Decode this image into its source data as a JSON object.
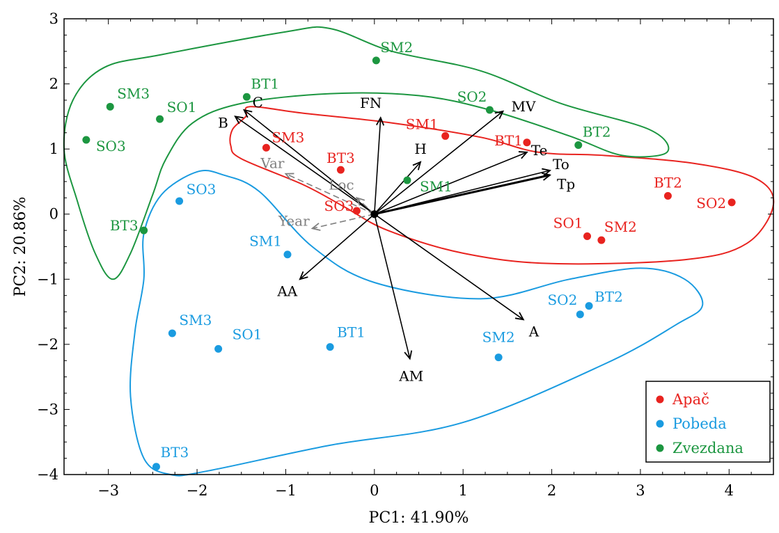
{
  "chart_data": {
    "type": "scatter",
    "title": "",
    "xlabel": "PC1: 41.90%",
    "ylabel": "PC2: 20.86%",
    "xlim": [
      -3.5,
      4.5
    ],
    "ylim": [
      -4,
      3
    ],
    "xticks": [
      -3,
      -2,
      -1,
      0,
      1,
      2,
      3,
      4
    ],
    "yticks": [
      -4,
      -3,
      -2,
      -1,
      0,
      1,
      2,
      3
    ],
    "xtick_labels": [
      "−3",
      "−2",
      "−1",
      "0",
      "1",
      "2",
      "3",
      "4"
    ],
    "ytick_labels": [
      "−4",
      "−3",
      "−2",
      "−1",
      "0",
      "1",
      "2",
      "3"
    ],
    "grid": false,
    "legend_position": "bottom-right",
    "series": [
      {
        "name": "Apač",
        "color": "#e8231f",
        "points": [
          {
            "label": "SM3",
            "x": -1.22,
            "y": 1.02
          },
          {
            "label": "BT3",
            "x": -0.38,
            "y": 0.68
          },
          {
            "label": "SO3",
            "x": -0.2,
            "y": 0.05
          },
          {
            "label": "SM1",
            "x": 0.8,
            "y": 1.2
          },
          {
            "label": "BT1",
            "x": 1.72,
            "y": 1.1
          },
          {
            "label": "SO1",
            "x": 2.4,
            "y": -0.34
          },
          {
            "label": "SM2",
            "x": 2.56,
            "y": -0.4
          },
          {
            "label": "BT2",
            "x": 3.31,
            "y": 0.28
          },
          {
            "label": "SO2",
            "x": 4.03,
            "y": 0.18
          }
        ]
      },
      {
        "name": "Pobeda",
        "color": "#1a9be0",
        "points": [
          {
            "label": "SO3",
            "x": -2.2,
            "y": 0.2
          },
          {
            "label": "SM1",
            "x": -0.98,
            "y": -0.62
          },
          {
            "label": "SM3",
            "x": -2.28,
            "y": -1.83
          },
          {
            "label": "SO1",
            "x": -1.76,
            "y": -2.07
          },
          {
            "label": "BT1",
            "x": -0.5,
            "y": -2.04
          },
          {
            "label": "SM2",
            "x": 1.4,
            "y": -2.2
          },
          {
            "label": "SO2",
            "x": 2.32,
            "y": -1.54
          },
          {
            "label": "BT2",
            "x": 2.42,
            "y": -1.41
          },
          {
            "label": "BT3",
            "x": -2.46,
            "y": -3.88
          }
        ]
      },
      {
        "name": "Zvezdana",
        "color": "#1c9640",
        "points": [
          {
            "label": "SM3",
            "x": -2.98,
            "y": 1.65
          },
          {
            "label": "SO1",
            "x": -2.42,
            "y": 1.46
          },
          {
            "label": "SO3",
            "x": -3.25,
            "y": 1.14
          },
          {
            "label": "BT1",
            "x": -1.44,
            "y": 1.8
          },
          {
            "label": "SM2",
            "x": 0.02,
            "y": 2.36
          },
          {
            "label": "SO2",
            "x": 1.3,
            "y": 1.6
          },
          {
            "label": "BT2",
            "x": 2.3,
            "y": 1.06
          },
          {
            "label": "SM1",
            "x": 0.37,
            "y": 0.52
          },
          {
            "label": "BT3",
            "x": -2.6,
            "y": -0.25
          }
        ]
      }
    ],
    "vectors": [
      {
        "label": "C",
        "x": -1.47,
        "y": 1.6,
        "color": "#000000"
      },
      {
        "label": "B",
        "x": -1.57,
        "y": 1.5,
        "color": "#000000"
      },
      {
        "label": "FN",
        "x": 0.07,
        "y": 1.48,
        "color": "#000000"
      },
      {
        "label": "MV",
        "x": 1.45,
        "y": 1.58,
        "color": "#000000"
      },
      {
        "label": "H",
        "x": 0.52,
        "y": 0.8,
        "color": "#000000"
      },
      {
        "label": "Te",
        "x": 1.72,
        "y": 0.95,
        "color": "#000000"
      },
      {
        "label": "To",
        "x": 1.98,
        "y": 0.67,
        "color": "#000000"
      },
      {
        "label": "Tp",
        "x": 1.98,
        "y": 0.6,
        "color": "#000000"
      },
      {
        "label": "AA",
        "x": -0.84,
        "y": -1.0,
        "color": "#000000"
      },
      {
        "label": "A",
        "x": 1.68,
        "y": -1.62,
        "color": "#000000"
      },
      {
        "label": "AM",
        "x": 0.4,
        "y": -2.22,
        "color": "#000000"
      },
      {
        "label": "Var",
        "x": -1.0,
        "y": 0.62,
        "color": "#808080",
        "dashed": true
      },
      {
        "label": "Loc",
        "x": -0.2,
        "y": 0.25,
        "color": "#808080",
        "dashed": true
      },
      {
        "label": "Year",
        "x": -0.7,
        "y": -0.22,
        "color": "#808080",
        "dashed": true
      }
    ],
    "hulls": [
      {
        "group": "Apač",
        "color": "#e8231f",
        "path": [
          [
            -1.4,
            1.65
          ],
          [
            -1.45,
            1.5
          ],
          [
            -1.6,
            1.3
          ],
          [
            -1.62,
            1.05
          ],
          [
            -1.5,
            0.85
          ],
          [
            -0.8,
            0.45
          ],
          [
            -0.35,
            0.12
          ],
          [
            0.15,
            -0.25
          ],
          [
            1.0,
            -0.6
          ],
          [
            2.0,
            -0.76
          ],
          [
            3.5,
            -0.7
          ],
          [
            4.2,
            -0.45
          ],
          [
            4.5,
            0.15
          ],
          [
            4.3,
            0.55
          ],
          [
            3.6,
            0.78
          ],
          [
            2.6,
            0.9
          ],
          [
            1.85,
            0.95
          ],
          [
            1.2,
            1.18
          ],
          [
            0.2,
            1.4
          ],
          [
            -0.8,
            1.55
          ]
        ]
      },
      {
        "group": "Pobeda",
        "color": "#1a9be0",
        "path": [
          [
            -2.0,
            0.65
          ],
          [
            -2.4,
            0.3
          ],
          [
            -2.6,
            -0.3
          ],
          [
            -2.6,
            -1.0
          ],
          [
            -2.7,
            -1.8
          ],
          [
            -2.75,
            -2.8
          ],
          [
            -2.6,
            -3.75
          ],
          [
            -2.3,
            -4.0
          ],
          [
            -1.9,
            -3.95
          ],
          [
            -0.5,
            -3.55
          ],
          [
            1.0,
            -3.2
          ],
          [
            2.6,
            -2.3
          ],
          [
            3.4,
            -1.7
          ],
          [
            3.7,
            -1.4
          ],
          [
            3.5,
            -1.0
          ],
          [
            3.0,
            -0.83
          ],
          [
            2.2,
            -1.0
          ],
          [
            1.2,
            -1.3
          ],
          [
            0.0,
            -1.05
          ],
          [
            -0.7,
            -0.5
          ],
          [
            -1.3,
            0.35
          ],
          [
            -1.7,
            0.6
          ]
        ]
      },
      {
        "group": "Zvezdana",
        "color": "#1c9640",
        "path": [
          [
            -3.05,
            2.25
          ],
          [
            -3.4,
            1.75
          ],
          [
            -3.5,
            1.0
          ],
          [
            -3.35,
            0.2
          ],
          [
            -3.15,
            -0.6
          ],
          [
            -2.95,
            -1.0
          ],
          [
            -2.75,
            -0.6
          ],
          [
            -2.5,
            0.3
          ],
          [
            -2.35,
            0.85
          ],
          [
            -2.05,
            1.4
          ],
          [
            -1.5,
            1.7
          ],
          [
            -0.5,
            1.85
          ],
          [
            0.5,
            1.82
          ],
          [
            1.3,
            1.6
          ],
          [
            2.2,
            1.2
          ],
          [
            2.8,
            0.9
          ],
          [
            3.3,
            0.95
          ],
          [
            3.1,
            1.3
          ],
          [
            2.1,
            1.7
          ],
          [
            1.2,
            2.2
          ],
          [
            0.2,
            2.5
          ],
          [
            -0.5,
            2.85
          ],
          [
            -1.0,
            2.8
          ],
          [
            -2.4,
            2.45
          ]
        ]
      }
    ]
  }
}
